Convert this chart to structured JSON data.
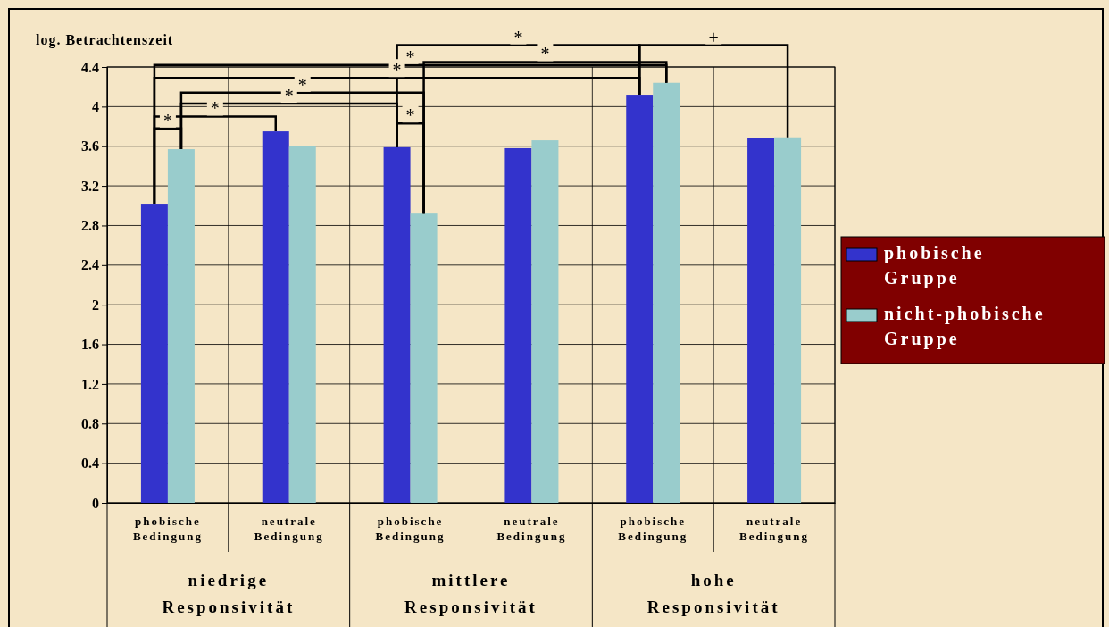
{
  "chart_data": {
    "type": "bar",
    "ylabel": "log. Betrachtenszeit",
    "categories": [
      "phobische Bedingung",
      "neutrale Bedingung",
      "phobische Bedingung",
      "neutrale Bedingung",
      "phobische Bedingung",
      "neutrale Bedingung"
    ],
    "series": [
      {
        "name": "phobische Gruppe",
        "color": "#3333cc",
        "values": [
          3.02,
          3.75,
          3.59,
          3.58,
          4.12,
          3.68
        ]
      },
      {
        "name": "nicht-phobische Gruppe",
        "color": "#99cccc",
        "values": [
          3.57,
          3.6,
          2.92,
          3.66,
          4.24,
          3.69
        ]
      }
    ],
    "ylim": [
      0,
      4.4
    ],
    "yticks": [
      0,
      0.4,
      0.8,
      1.2,
      1.6,
      2,
      2.4,
      2.8,
      3.2,
      3.6,
      4,
      4.4
    ],
    "grid": true,
    "legend": "right",
    "annotations": [
      "niedrige Responsivität",
      "mittlere Responsivität",
      "hohe Responsivität",
      "*",
      "*",
      "*",
      "*",
      "*",
      "*",
      "*",
      "*",
      "*",
      "+"
    ]
  }
}
